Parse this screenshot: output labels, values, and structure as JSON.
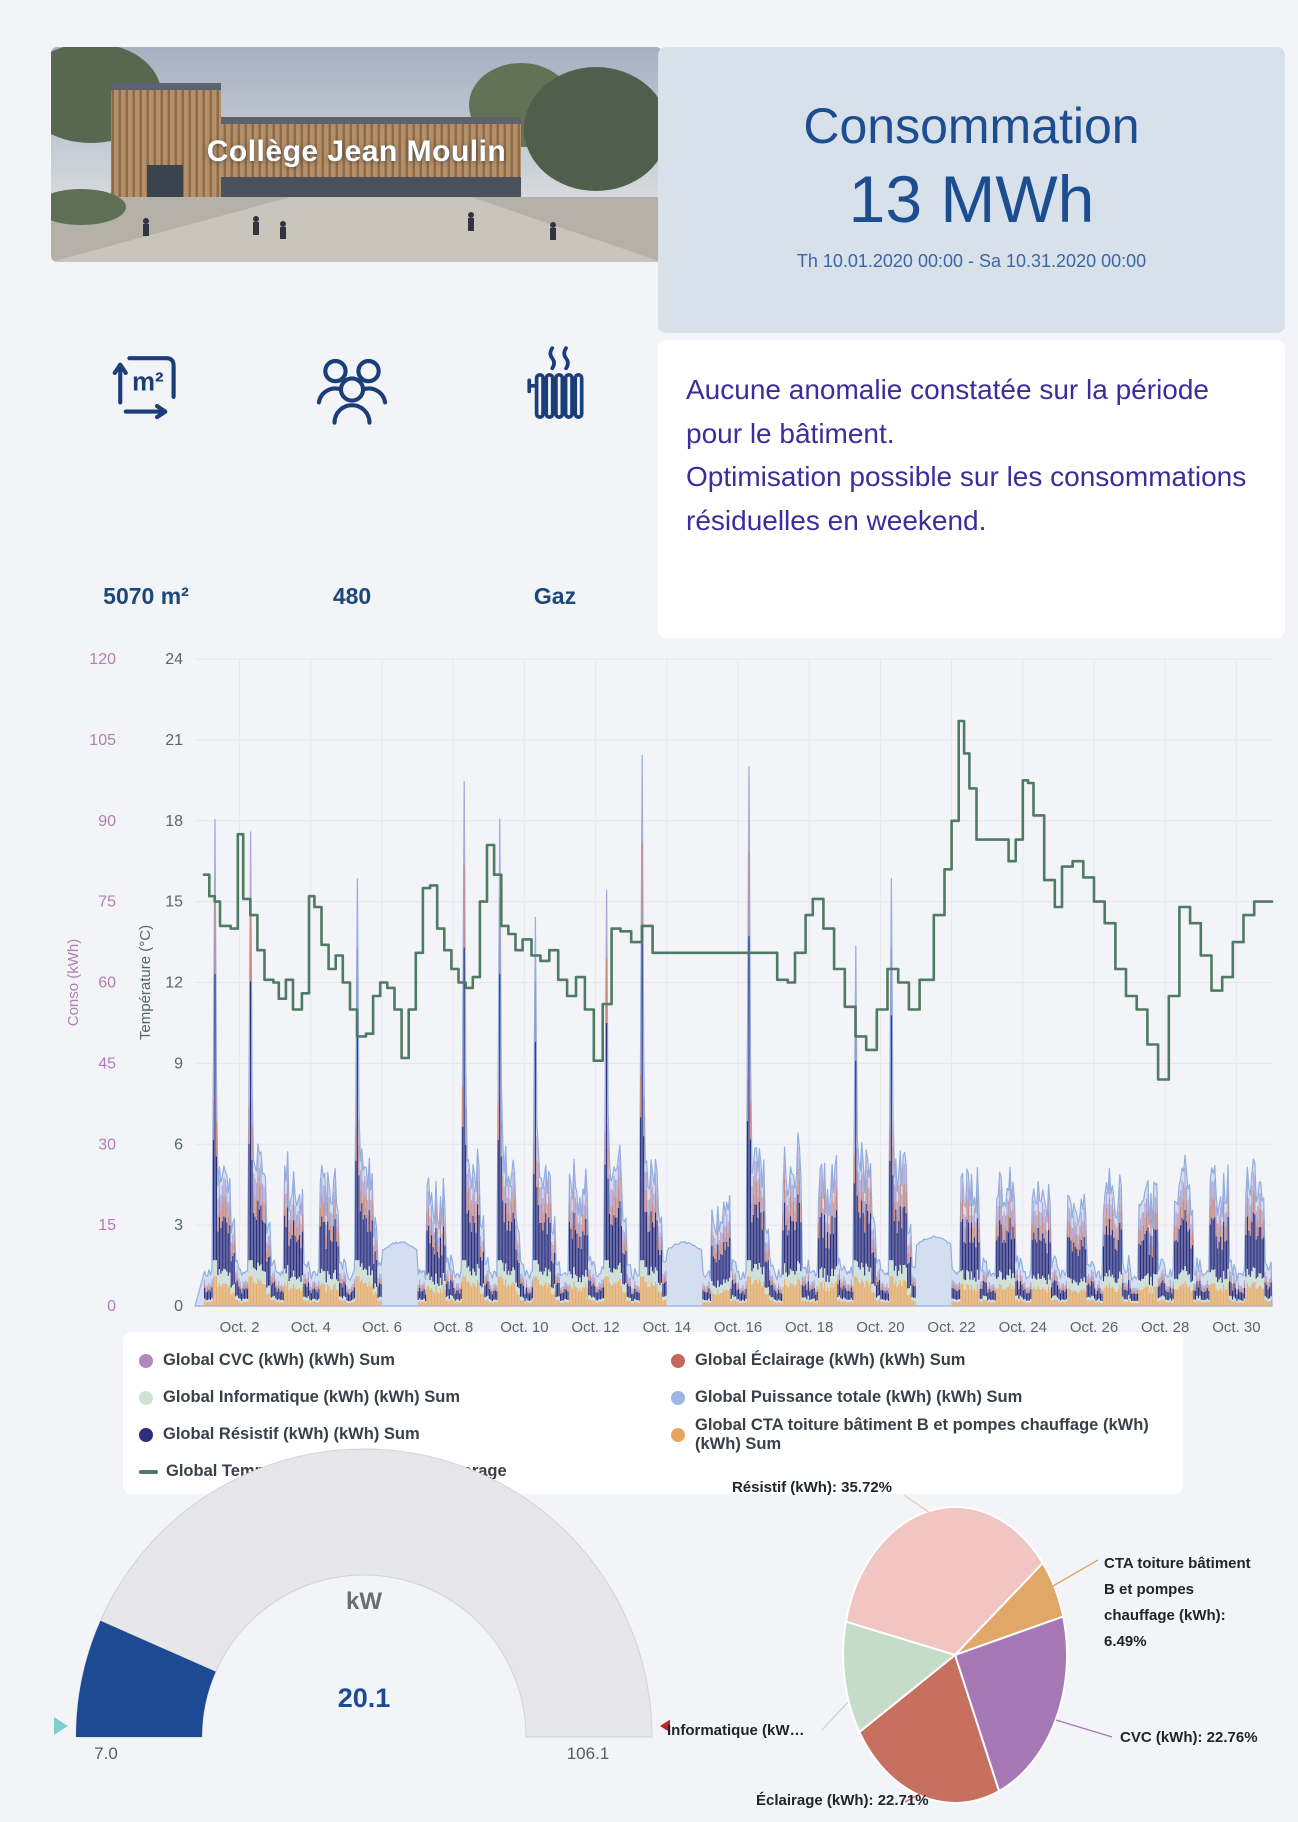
{
  "banner": {
    "title": "Collège Jean Moulin"
  },
  "summary": {
    "title": "Consommation",
    "value": "13 MWh",
    "period": "Th 10.01.2020 00:00 - Sa 10.31.2020 00:00"
  },
  "stats": {
    "area": {
      "icon": "area-icon",
      "value": "5070 m²"
    },
    "occupants": {
      "icon": "occupants-icon",
      "value": "480"
    },
    "heating": {
      "icon": "heating-icon",
      "value": "Gaz"
    }
  },
  "insight": {
    "line1": "Aucune anomalie constatée sur la période pour le bâtiment.",
    "line2": "Optimisation possible sur les consommations résiduelles en weekend."
  },
  "legend": {
    "items": [
      {
        "label": "Global CVC (kWh) (kWh) Sum",
        "color": "#b287bd",
        "marker": "dot"
      },
      {
        "label": "Global Éclairage (kWh) (kWh) Sum",
        "color": "#c4695f",
        "marker": "dot"
      },
      {
        "label": "Global Informatique (kWh) (kWh) Sum",
        "color": "#cfe2d2",
        "marker": "dot"
      },
      {
        "label": "Global Puissance totale (kWh) (kWh) Sum",
        "color": "#9db4e4",
        "marker": "dot"
      },
      {
        "label": "Global Résistif (kWh) (kWh) Sum",
        "color": "#2d2f7d",
        "marker": "dot"
      },
      {
        "label": "Global CTA toiture bâtiment B et pompes chauffage (kWh) (kWh) Sum",
        "color": "#e6a75c",
        "marker": "dot"
      },
      {
        "label": "Global Température extérieure (°C) Average",
        "color": "#4f7a63",
        "marker": "line"
      }
    ]
  },
  "chart_data": {
    "main": {
      "type": "mixed-bar-line-area",
      "y_left": {
        "label": "Conso (kWh)",
        "ticks": [
          0,
          15,
          30,
          45,
          60,
          75,
          90,
          105,
          120
        ],
        "color": "#b07fb0",
        "range": [
          0,
          120
        ]
      },
      "y_temp": {
        "label": "Température (°C)",
        "ticks": [
          0,
          3,
          6,
          9,
          12,
          15,
          18,
          21,
          24
        ],
        "color": "#54666c",
        "range": [
          0,
          24
        ]
      },
      "x_ticks": [
        "Oct. 2",
        "Oct. 4",
        "Oct. 6",
        "Oct. 8",
        "Oct. 10",
        "Oct. 12",
        "Oct. 14",
        "Oct. 16",
        "Oct. 18",
        "Oct. 20",
        "Oct. 22",
        "Oct. 24",
        "Oct. 26",
        "Oct. 28",
        "Oct. 30"
      ],
      "series_colors": {
        "cta": "#eaaf66",
        "informatique": "#cfe2d2",
        "resistif": "#2d2f7d",
        "eclairage": "#c98b84",
        "cvc": "#b0a6d8",
        "puissance": "#92aede",
        "temperature": "#4f7a63"
      },
      "days": [
        {
          "day": 1,
          "type": "school",
          "peak": 88
        },
        {
          "day": 2,
          "type": "school",
          "peak": 86
        },
        {
          "day": 3,
          "type": "medium",
          "peak": 30
        },
        {
          "day": 4,
          "type": "medium",
          "peak": 28
        },
        {
          "day": 5,
          "type": "school",
          "peak": 77
        },
        {
          "day": 6,
          "type": "flat",
          "peak": 11
        },
        {
          "day": 7,
          "type": "medium",
          "peak": 25
        },
        {
          "day": 8,
          "type": "school",
          "peak": 95
        },
        {
          "day": 9,
          "type": "school",
          "peak": 88
        },
        {
          "day": 10,
          "type": "school",
          "peak": 70
        },
        {
          "day": 11,
          "type": "medium",
          "peak": 30
        },
        {
          "day": 12,
          "type": "school",
          "peak": 75
        },
        {
          "day": 13,
          "type": "school",
          "peak": 100
        },
        {
          "day": 14,
          "type": "flat",
          "peak": 11
        },
        {
          "day": 15,
          "type": "medium",
          "peak": 22
        },
        {
          "day": 16,
          "type": "school",
          "peak": 98
        },
        {
          "day": 17,
          "type": "medium",
          "peak": 35
        },
        {
          "day": 18,
          "type": "medium",
          "peak": 30
        },
        {
          "day": 19,
          "type": "school",
          "peak": 65
        },
        {
          "day": 20,
          "type": "school",
          "peak": 77
        },
        {
          "day": 21,
          "type": "flat",
          "peak": 12
        },
        {
          "day": 22,
          "type": "medium",
          "peak": 28
        },
        {
          "day": 23,
          "type": "medium",
          "peak": 30
        },
        {
          "day": 24,
          "type": "medium",
          "peak": 25
        },
        {
          "day": 25,
          "type": "medium",
          "peak": 22
        },
        {
          "day": 26,
          "type": "medium",
          "peak": 28
        },
        {
          "day": 27,
          "type": "medium",
          "peak": 25
        },
        {
          "day": 28,
          "type": "medium",
          "peak": 30
        },
        {
          "day": 29,
          "type": "medium",
          "peak": 28
        },
        {
          "day": 30,
          "type": "medium",
          "peak": 30
        }
      ],
      "temperature": [
        [
          1,
          16
        ],
        [
          1.15,
          15.2
        ],
        [
          1.3,
          15
        ],
        [
          1.45,
          14.1
        ],
        [
          1.75,
          14
        ],
        [
          1.95,
          17.5
        ],
        [
          2.1,
          15.1
        ],
        [
          2.3,
          14.5
        ],
        [
          2.5,
          13.2
        ],
        [
          2.7,
          12.1
        ],
        [
          2.95,
          12
        ],
        [
          3.1,
          11.4
        ],
        [
          3.3,
          12.1
        ],
        [
          3.5,
          11
        ],
        [
          3.75,
          11.6
        ],
        [
          3.95,
          15.2
        ],
        [
          4.1,
          14.8
        ],
        [
          4.3,
          13.4
        ],
        [
          4.5,
          12.5
        ],
        [
          4.7,
          13
        ],
        [
          4.9,
          12
        ],
        [
          5.1,
          11
        ],
        [
          5.3,
          10
        ],
        [
          5.55,
          10.1
        ],
        [
          5.75,
          11.5
        ],
        [
          5.95,
          12
        ],
        [
          6.15,
          11.8
        ],
        [
          6.35,
          11
        ],
        [
          6.55,
          9.2
        ],
        [
          6.75,
          11
        ],
        [
          6.95,
          13.1
        ],
        [
          7.15,
          15.5
        ],
        [
          7.35,
          15.6
        ],
        [
          7.55,
          14
        ],
        [
          7.75,
          13.2
        ],
        [
          7.95,
          12.5
        ],
        [
          8.15,
          12
        ],
        [
          8.35,
          11.8
        ],
        [
          8.55,
          12.2
        ],
        [
          8.75,
          15
        ],
        [
          8.95,
          17.1
        ],
        [
          9.15,
          16
        ],
        [
          9.35,
          14.1
        ],
        [
          9.55,
          13.8
        ],
        [
          9.75,
          13.2
        ],
        [
          9.95,
          13.6
        ],
        [
          10.2,
          13
        ],
        [
          10.45,
          12.8
        ],
        [
          10.7,
          13.2
        ],
        [
          10.95,
          12.1
        ],
        [
          11.2,
          11.5
        ],
        [
          11.45,
          12.2
        ],
        [
          11.7,
          11
        ],
        [
          11.95,
          9.1
        ],
        [
          12.2,
          11.2
        ],
        [
          12.45,
          14
        ],
        [
          12.7,
          13.9
        ],
        [
          13,
          13.5
        ],
        [
          13.3,
          14.1
        ],
        [
          13.6,
          13.1
        ],
        [
          13.9,
          13.1
        ],
        [
          14.2,
          13.1
        ],
        [
          16.9,
          13.1
        ],
        [
          17.1,
          12.1
        ],
        [
          17.4,
          12
        ],
        [
          17.6,
          13.1
        ],
        [
          17.9,
          14.5
        ],
        [
          18.1,
          15.1
        ],
        [
          18.4,
          14
        ],
        [
          18.7,
          12.5
        ],
        [
          19,
          11.1
        ],
        [
          19.3,
          10
        ],
        [
          19.6,
          9.5
        ],
        [
          19.9,
          11
        ],
        [
          20.2,
          12.5
        ],
        [
          20.5,
          12
        ],
        [
          20.8,
          11
        ],
        [
          21.1,
          12.1
        ],
        [
          21.5,
          14.5
        ],
        [
          21.8,
          16.2
        ],
        [
          22,
          18
        ],
        [
          22.2,
          21.7
        ],
        [
          22.35,
          20.5
        ],
        [
          22.5,
          19.2
        ],
        [
          22.7,
          17.3
        ],
        [
          23.4,
          17.3
        ],
        [
          23.6,
          16.5
        ],
        [
          23.8,
          17.3
        ],
        [
          24,
          19.5
        ],
        [
          24.15,
          19.4
        ],
        [
          24.3,
          18.2
        ],
        [
          24.6,
          15.8
        ],
        [
          24.9,
          14.8
        ],
        [
          25.1,
          16.3
        ],
        [
          25.4,
          16.5
        ],
        [
          25.7,
          15.9
        ],
        [
          26,
          15
        ],
        [
          26.3,
          14.2
        ],
        [
          26.6,
          12.5
        ],
        [
          26.9,
          11.5
        ],
        [
          27.2,
          11
        ],
        [
          27.5,
          9.7
        ],
        [
          27.8,
          8.4
        ],
        [
          28.1,
          11.5
        ],
        [
          28.4,
          14.8
        ],
        [
          28.7,
          14.2
        ],
        [
          29,
          13
        ],
        [
          29.3,
          11.7
        ],
        [
          29.6,
          12.2
        ],
        [
          29.9,
          13.5
        ],
        [
          30.2,
          14.5
        ],
        [
          30.5,
          15
        ],
        [
          31,
          15
        ]
      ]
    },
    "gauge": {
      "type": "gauge",
      "unit": "kW",
      "value": 20.1,
      "min": 7.0,
      "max": 106.1,
      "labels": {
        "value": "20.1",
        "min": "7.0",
        "max": "106.1"
      },
      "colors": {
        "fill": "#1e4a94",
        "track": "#e7e7e9",
        "min_marker": "#7fd0cc",
        "max_marker": "#c32222",
        "value_text": "#1e4a94",
        "unit_text": "#6a6d72",
        "range_text": "#585c63"
      }
    },
    "pie": {
      "type": "pie",
      "start_angle": 283,
      "slices": [
        {
          "name": "Résistif (kWh)",
          "pct": 35.72,
          "color": "#f1c6c2",
          "label_lines": [
            "Résistif (kWh): 35.72%"
          ],
          "label_pos": [
            252,
            52
          ],
          "anchor": "end",
          "leader": [
            [
              290,
              73
            ],
            [
              264,
              55
            ]
          ]
        },
        {
          "name": "CTA toiture bâtiment B et pompes chauffage (kWh)",
          "pct": 6.49,
          "color": "#e0a767",
          "label_lines": [
            "CTA toiture bâtiment",
            "B et pompes",
            "chauffage (kWh):",
            "6.49%"
          ],
          "label_pos": [
            464,
            128
          ],
          "anchor": "start",
          "leader": [
            [
              413,
              146
            ],
            [
              458,
              120
            ]
          ]
        },
        {
          "name": "CVC (kWh)",
          "pct": 22.76,
          "color": "#a778b6",
          "label_lines": [
            "CVC (kWh): 22.76%"
          ],
          "label_pos": [
            480,
            302
          ],
          "anchor": "start",
          "leader": [
            [
              416,
              280
            ],
            [
              472,
              297
            ]
          ]
        },
        {
          "name": "Éclairage (kWh)",
          "pct": 22.71,
          "color": "#c7705f",
          "label_lines": [
            "Éclairage (kWh): 22.71%"
          ],
          "label_pos": [
            116,
            365
          ],
          "anchor": "start",
          "leader": [
            [
              283,
              352
            ],
            [
              265,
              362
            ]
          ]
        },
        {
          "name": "Informatique (kWh)",
          "pct": 12.32,
          "color": "#c6dbc8",
          "label_lines": [
            "Informatique (kW…"
          ],
          "label_pos": [
            27,
            295
          ],
          "anchor": "start",
          "leader": [
            [
              208,
              262
            ],
            [
              182,
              290
            ]
          ]
        }
      ]
    }
  }
}
